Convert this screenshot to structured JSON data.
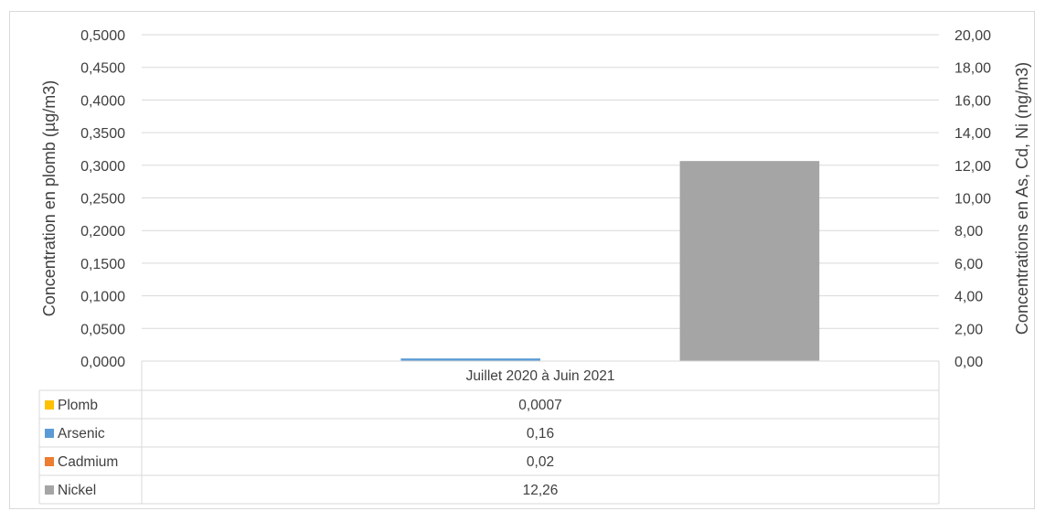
{
  "chart_data": {
    "type": "bar",
    "title": "",
    "categories": [
      "Juillet 2020 à Juin 2021"
    ],
    "y_left": {
      "label": "Concentration en plomb (µg/m3)",
      "ylim": [
        0,
        0.5
      ],
      "ticks": [
        "0,0000",
        "0,0500",
        "0,1000",
        "0,1500",
        "0,2000",
        "0,2500",
        "0,3000",
        "0,3500",
        "0,4000",
        "0,4500",
        "0,5000"
      ]
    },
    "y_right": {
      "label": "Concentrations en As, Cd, Ni (ng/m3)",
      "ylim": [
        0,
        20
      ],
      "ticks": [
        "0,00",
        "2,00",
        "4,00",
        "6,00",
        "8,00",
        "10,00",
        "12,00",
        "14,00",
        "16,00",
        "18,00",
        "20,00"
      ]
    },
    "series": [
      {
        "name": "Plomb",
        "axis": "left",
        "values": [
          0.0007
        ],
        "display": "0,0007",
        "color": "#ffc000"
      },
      {
        "name": "Arsenic",
        "axis": "right",
        "values": [
          0.16
        ],
        "display": "0,16",
        "color": "#5b9bd5"
      },
      {
        "name": "Cadmium",
        "axis": "right",
        "values": [
          0.02
        ],
        "display": "0,02",
        "color": "#ed7d31"
      },
      {
        "name": "Nickel",
        "axis": "right",
        "values": [
          12.26
        ],
        "display": "12,26",
        "color": "#a5a5a5"
      }
    ],
    "grid": true,
    "legend": "data-table"
  }
}
